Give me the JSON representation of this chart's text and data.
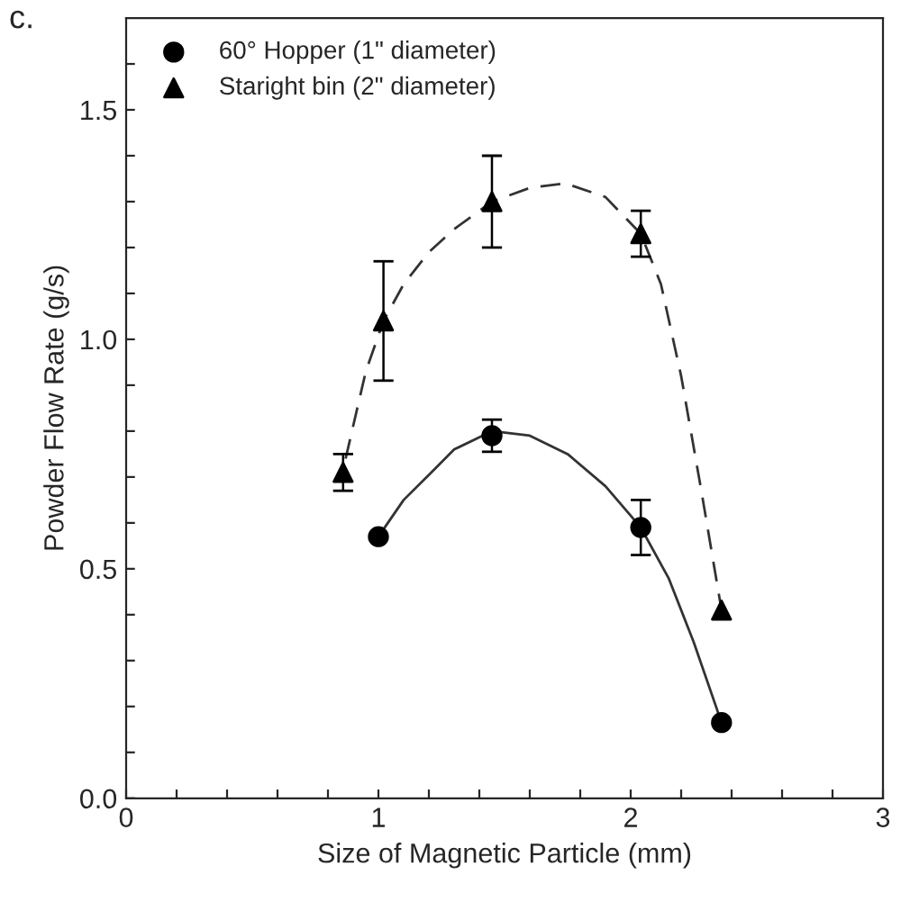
{
  "chart_data": {
    "type": "scatter",
    "xlabel": "Size of Magnetic Particle (mm)",
    "ylabel": "Powder Flow Rate (g/s)",
    "annotations": [
      "c."
    ],
    "xlim": [
      0,
      3
    ],
    "ylim": [
      0,
      1.7
    ],
    "xticks": [
      0,
      {
        "value": 0.2,
        "label": null
      },
      {
        "value": 0.4,
        "label": null
      },
      {
        "value": 0.6,
        "label": null
      },
      {
        "value": 0.8,
        "label": null
      },
      1,
      {
        "value": 1.2,
        "label": null
      },
      {
        "value": 1.4,
        "label": null
      },
      {
        "value": 1.6,
        "label": null
      },
      {
        "value": 1.8,
        "label": null
      },
      2,
      {
        "value": 2.2,
        "label": null
      },
      {
        "value": 2.4,
        "label": null
      },
      {
        "value": 2.6,
        "label": null
      },
      {
        "value": 2.8,
        "label": null
      },
      3
    ],
    "yticks": [
      {
        "value": 0,
        "label": "0.0"
      },
      {
        "value": 0.1,
        "label": null
      },
      {
        "value": 0.2,
        "label": null
      },
      {
        "value": 0.3,
        "label": null
      },
      {
        "value": 0.4,
        "label": null
      },
      0.5,
      {
        "value": 0.6,
        "label": null
      },
      {
        "value": 0.7,
        "label": null
      },
      {
        "value": 0.8,
        "label": null
      },
      {
        "value": 0.9,
        "label": null
      },
      {
        "value": 1,
        "label": "1.0"
      },
      {
        "value": 1.1,
        "label": null
      },
      {
        "value": 1.2,
        "label": null
      },
      {
        "value": 1.3,
        "label": null
      },
      {
        "value": 1.4,
        "label": null
      },
      1.5,
      {
        "value": 1.6,
        "label": null
      }
    ],
    "grid": false,
    "legend": "top left",
    "series": [
      {
        "name": "60° Hopper (1\" diameter)",
        "color": "#000000",
        "marker": "circle",
        "x": [
          1.0,
          1.45,
          2.04,
          2.36
        ],
        "values": [
          0.57,
          0.79,
          0.59,
          0.165
        ],
        "errors": [
          null,
          0.035,
          0.06,
          null
        ]
      },
      {
        "name": "Staright bin (2\" diameter)",
        "color": "#000000",
        "marker": "triangle",
        "x": [
          0.86,
          1.02,
          1.45,
          2.04,
          2.36
        ],
        "values": [
          0.71,
          1.04,
          1.3,
          1.23,
          0.41
        ],
        "errors": [
          0.04,
          0.13,
          0.1,
          0.05,
          null
        ]
      },
      {
        "type": "line",
        "color": "#333333",
        "line_style": "solid",
        "marker": "none",
        "x": [
          1.0,
          1.1,
          1.21,
          1.3,
          1.45,
          1.6,
          1.75,
          1.9,
          2.04,
          2.15,
          2.25,
          2.36
        ],
        "values": [
          0.57,
          0.65,
          0.71,
          0.76,
          0.8,
          0.79,
          0.75,
          0.68,
          0.59,
          0.48,
          0.34,
          0.165
        ]
      },
      {
        "type": "line",
        "color": "#333333",
        "line_style": "dashed",
        "marker": "none",
        "x": [
          0.87,
          0.95,
          1.02,
          1.1,
          1.2,
          1.3,
          1.45,
          1.6,
          1.74,
          1.9,
          2.04,
          2.12,
          2.2,
          2.28,
          2.36
        ],
        "values": [
          0.74,
          0.93,
          1.04,
          1.12,
          1.19,
          1.24,
          1.3,
          1.33,
          1.34,
          1.31,
          1.23,
          1.12,
          0.92,
          0.67,
          0.41
        ]
      }
    ]
  }
}
